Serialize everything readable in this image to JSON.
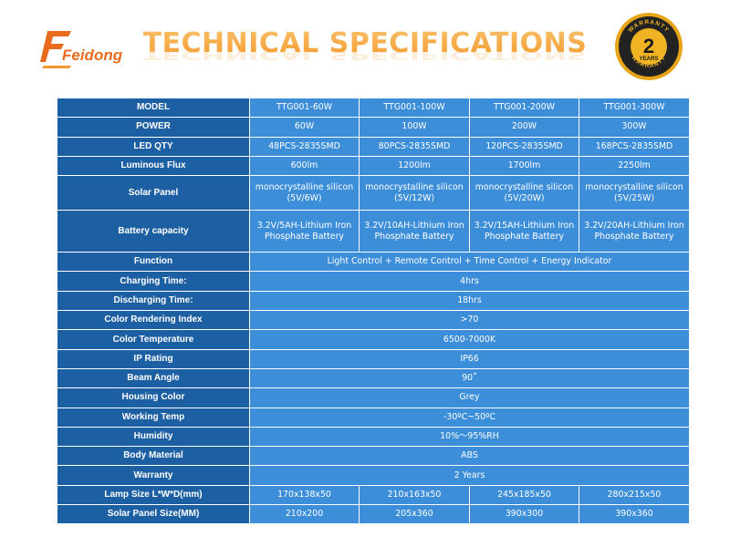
{
  "logo_text": "Feidong",
  "title": "TECHNICAL SPECIFICATIONS",
  "warranty_badge": {
    "number": "2",
    "unit": "YEARS",
    "arc_text": "WARRANTY"
  },
  "colors": {
    "label_cell": "#1d5fa3",
    "value_cell": "#3d8ed9",
    "title_orange": "#f59a2c",
    "logo_orange": "#e96b1e",
    "badge_gold": "#e8a417"
  },
  "spec_table": {
    "header": {
      "label": "MODEL",
      "models": [
        "TTG001-60W",
        "TTG001-100W",
        "TTG001-200W",
        "TTG001-300W"
      ]
    },
    "per_model_rows": [
      {
        "label": "POWER",
        "values": [
          "60W",
          "100W",
          "200W",
          "300W"
        ]
      },
      {
        "label": "LED QTY",
        "values": [
          "48PCS-2835SMD",
          "80PCS-2835SMD",
          "120PCS-2835SMD",
          "168PCS-2835SMD"
        ]
      },
      {
        "label": "Luminous Flux",
        "values": [
          "600lm",
          "1200lm",
          "1700lm",
          "2250lm"
        ]
      },
      {
        "label": "Solar Panel",
        "values": [
          "monocrystalline silicon (5V/6W)",
          "monocrystalline silicon (5V/12W)",
          "monocrystalline silicon (5V/20W)",
          "monocrystalline silicon (5V/25W)"
        ]
      },
      {
        "label": "Battery capacity",
        "values": [
          "3.2V/5AH-Lithium Iron Phosphate Battery",
          "3.2V/10AH-Lithium Iron Phosphate Battery",
          "3.2V/15AH-Lithium Iron Phosphate Battery",
          "3.2V/20AH-Lithium Iron Phosphate Battery"
        ]
      }
    ],
    "shared_rows": [
      {
        "label": "Function",
        "value": "Light Control + Remote Control + Time Control + Energy Indicator"
      },
      {
        "label": "Charging Time:",
        "value": "4hrs"
      },
      {
        "label": "Discharging Time:",
        "value": "18hrs"
      },
      {
        "label": "Color Rendering Index",
        "value": ">70"
      },
      {
        "label": "Color Temperature",
        "value": "6500-7000K"
      },
      {
        "label": "IP Rating",
        "value": "IP66"
      },
      {
        "label": "Beam Angle",
        "value": "90˚"
      },
      {
        "label": "Housing Color",
        "value": "Grey"
      },
      {
        "label": "Working Temp",
        "value": "-30ºC~50ºC"
      },
      {
        "label": "Humidity",
        "value": "10%～95%RH"
      },
      {
        "label": "Body Material",
        "value": "ABS"
      },
      {
        "label": "Warranty",
        "value": "2 Years"
      }
    ],
    "size_rows": [
      {
        "label": "Lamp Size L*W*D(mm)",
        "values": [
          "170x138x50",
          "210x163x50",
          "245x185x50",
          "280x215x50"
        ]
      },
      {
        "label": "Solar Panel Size(MM)",
        "values": [
          "210x200",
          "205x360",
          "390x300",
          "390x360"
        ]
      }
    ]
  }
}
